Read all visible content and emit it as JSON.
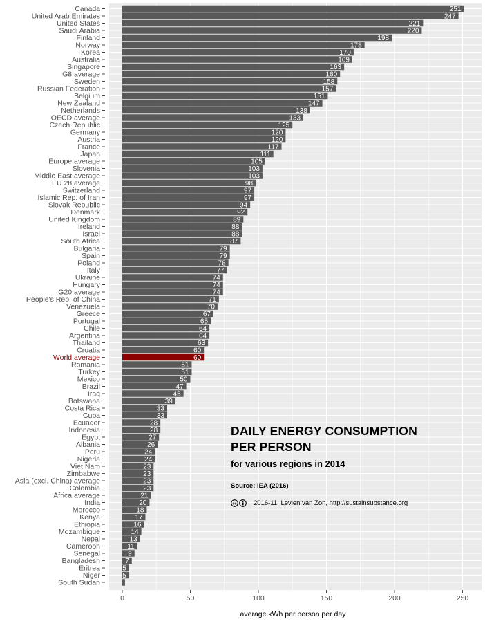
{
  "chart_data": {
    "type": "bar",
    "orientation": "horizontal",
    "title": "DAILY ENERGY CONSUMPTION PER PERSON",
    "title_lines": [
      "DAILY ENERGY CONSUMPTION",
      "PER PERSON"
    ],
    "subtitle": "for various regions in 2014",
    "source": "Source: IEA (2016)",
    "credit": "2016-11, Levien van Zon, http://sustainsubstance.org",
    "xlabel": "average kWh per person per day",
    "ylabel": "",
    "xlim": [
      0,
      260
    ],
    "xticks": [
      0,
      50,
      100,
      150,
      200,
      250
    ],
    "grid": true,
    "bar_color": "#595959",
    "highlight_color": "#8b0000",
    "highlight_category": "World average",
    "background_color": "#ebebeb",
    "categories": [
      "Canada",
      "United Arab Emirates",
      "United States",
      "Saudi Arabia",
      "Finland",
      "Norway",
      "Korea",
      "Australia",
      "Singapore",
      "G8 average",
      "Sweden",
      "Russian Federation",
      "Belgium",
      "New Zealand",
      "Netherlands",
      "OECD average",
      "Czech Republic",
      "Germany",
      "Austria",
      "France",
      "Japan",
      "Europe average",
      "Slovenia",
      "Middle East average",
      "EU 28 average",
      "Switzerland",
      "Islamic Rep. of Iran",
      "Slovak Republic",
      "Denmark",
      "United Kingdom",
      "Ireland",
      "Israel",
      "South Africa",
      "Bulgaria",
      "Spain",
      "Poland",
      "Italy",
      "Ukraine",
      "Hungary",
      "G20 average",
      "People's Rep. of China",
      "Venezuela",
      "Greece",
      "Portugal",
      "Chile",
      "Argentina",
      "Thailand",
      "Croatia",
      "World average",
      "Romania",
      "Turkey",
      "Mexico",
      "Brazil",
      "Iraq",
      "Botswana",
      "Costa Rica",
      "Cuba",
      "Ecuador",
      "Indonesia",
      "Egypt",
      "Albania",
      "Peru",
      "Nigeria",
      "Viet Nam",
      "Zimbabwe",
      "Asia (excl. China) average",
      "Colombia",
      "Africa average",
      "India",
      "Morocco",
      "Kenya",
      "Ethiopia",
      "Mozambique",
      "Nepal",
      "Cameroon",
      "Senegal",
      "Bangladesh",
      "Eritrea",
      "Niger",
      "South Sudan"
    ],
    "values": [
      251,
      247,
      221,
      220,
      198,
      178,
      170,
      169,
      163,
      160,
      158,
      157,
      151,
      147,
      138,
      133,
      125,
      120,
      120,
      117,
      111,
      105,
      103,
      103,
      98,
      97,
      97,
      94,
      92,
      89,
      88,
      88,
      87,
      79,
      79,
      78,
      77,
      74,
      74,
      74,
      71,
      70,
      67,
      65,
      64,
      64,
      63,
      60,
      60,
      51,
      51,
      50,
      47,
      45,
      39,
      33,
      33,
      28,
      28,
      27,
      26,
      24,
      24,
      23,
      23,
      23,
      23,
      21,
      20,
      18,
      17,
      16,
      14,
      13,
      11,
      9,
      7,
      5,
      5,
      2
    ],
    "value_labels": [
      "251",
      "247",
      "221",
      "220",
      "198",
      "178",
      "170",
      "169",
      "163",
      "160",
      "158",
      "157",
      "151",
      "147",
      "138",
      "133",
      "125",
      "120",
      "120",
      "117",
      "111",
      "105",
      "103",
      "103",
      "98",
      "97",
      "97",
      "94",
      "92",
      "89",
      "88",
      "88",
      "87",
      "79",
      "79",
      "78",
      "77",
      "74",
      "74",
      "74",
      "71",
      "70",
      "67",
      "65",
      "64",
      "64",
      "63",
      "60",
      "60",
      "51",
      "51",
      "50",
      "47",
      "45",
      "39",
      "33",
      "33",
      "28",
      "28",
      "27",
      "26",
      "24",
      "24",
      "23",
      "23",
      "23",
      "23",
      "21",
      "20",
      "18",
      "17",
      "16",
      "14",
      "13",
      "11",
      "9",
      "7",
      "5",
      "5",
      ""
    ]
  }
}
